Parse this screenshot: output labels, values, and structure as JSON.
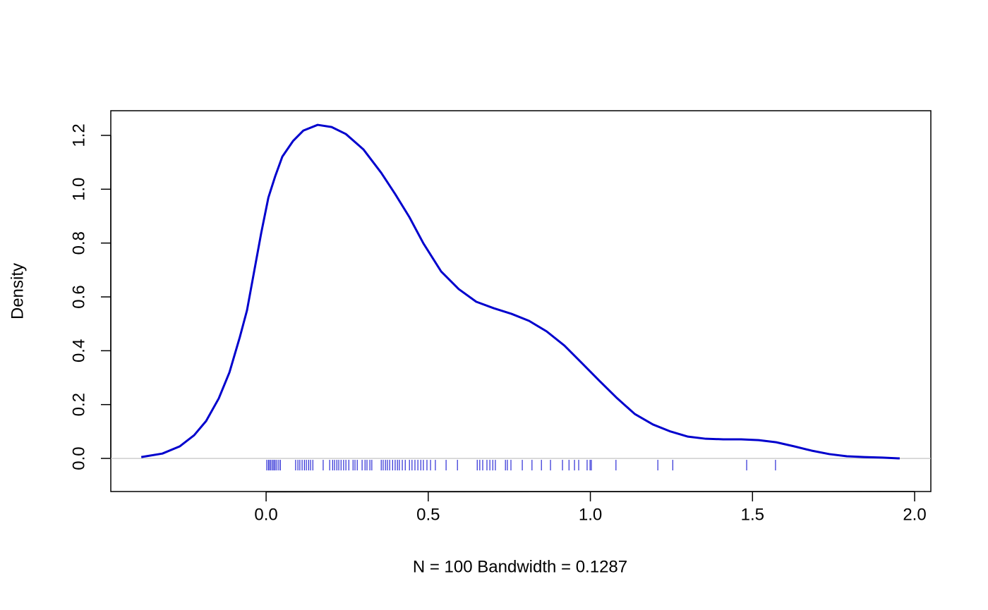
{
  "chart_data": {
    "type": "line",
    "ylabel": "Density",
    "xlabel": "N = 100   Bandwidth = 0.1287",
    "color": "#0000cd",
    "rug_color": "#0000cd",
    "zero_line_color": "#bebebe",
    "xlim": [
      -0.479,
      2.05
    ],
    "ylim": [
      -0.123,
      1.2916
    ],
    "xticks": [
      {
        "value": 0,
        "label": "0.0"
      },
      0.5,
      {
        "value": 1,
        "label": "1.0"
      },
      1.5,
      {
        "value": 2,
        "label": "2.0"
      }
    ],
    "yticks": [
      {
        "value": 0,
        "label": "0.0"
      },
      0.2,
      0.4,
      0.6,
      0.8,
      {
        "value": 1,
        "label": "1.0"
      },
      1.2
    ],
    "x": [
      -0.385,
      -0.32,
      -0.266,
      -0.222,
      -0.185,
      -0.146,
      -0.113,
      -0.081,
      -0.059,
      -0.037,
      -0.015,
      0.007,
      0.028,
      0.05,
      0.083,
      0.115,
      0.159,
      0.202,
      0.246,
      0.3,
      0.355,
      0.398,
      0.442,
      0.485,
      0.54,
      0.594,
      0.648,
      0.702,
      0.757,
      0.811,
      0.865,
      0.92,
      0.974,
      1.028,
      1.083,
      1.137,
      1.193,
      1.247,
      1.301,
      1.356,
      1.41,
      1.465,
      1.519,
      1.573,
      1.628,
      1.682,
      1.737,
      1.791,
      1.845,
      1.9,
      1.954
    ],
    "values": [
      0.005,
      0.018,
      0.045,
      0.086,
      0.139,
      0.223,
      0.32,
      0.451,
      0.55,
      0.694,
      0.838,
      0.969,
      1.048,
      1.121,
      1.179,
      1.218,
      1.239,
      1.231,
      1.205,
      1.148,
      1.061,
      0.982,
      0.896,
      0.799,
      0.694,
      0.629,
      0.582,
      0.558,
      0.537,
      0.511,
      0.472,
      0.419,
      0.354,
      0.288,
      0.223,
      0.165,
      0.126,
      0.1,
      0.081,
      0.073,
      0.071,
      0.071,
      0.068,
      0.06,
      0.045,
      0.029,
      0.016,
      0.008,
      0.005,
      0.003,
      0
    ],
    "rug": [
      0.002,
      0.007,
      0.011,
      0.015,
      0.02,
      0.024,
      0.028,
      0.033,
      0.039,
      0.044,
      0.091,
      0.098,
      0.104,
      0.111,
      0.118,
      0.124,
      0.131,
      0.137,
      0.144,
      0.176,
      0.196,
      0.205,
      0.211,
      0.218,
      0.224,
      0.231,
      0.239,
      0.246,
      0.255,
      0.268,
      0.274,
      0.281,
      0.296,
      0.305,
      0.311,
      0.32,
      0.326,
      0.355,
      0.361,
      0.368,
      0.374,
      0.381,
      0.39,
      0.398,
      0.405,
      0.411,
      0.42,
      0.429,
      0.442,
      0.45,
      0.459,
      0.468,
      0.477,
      0.485,
      0.496,
      0.507,
      0.522,
      0.555,
      0.59,
      0.651,
      0.659,
      0.668,
      0.681,
      0.69,
      0.699,
      0.707,
      0.738,
      0.744,
      0.755,
      0.79,
      0.82,
      0.849,
      0.877,
      0.914,
      0.934,
      0.951,
      0.964,
      0.99,
      0.999,
      1.003,
      1.079,
      1.208,
      1.254,
      1.482,
      1.571
    ]
  }
}
